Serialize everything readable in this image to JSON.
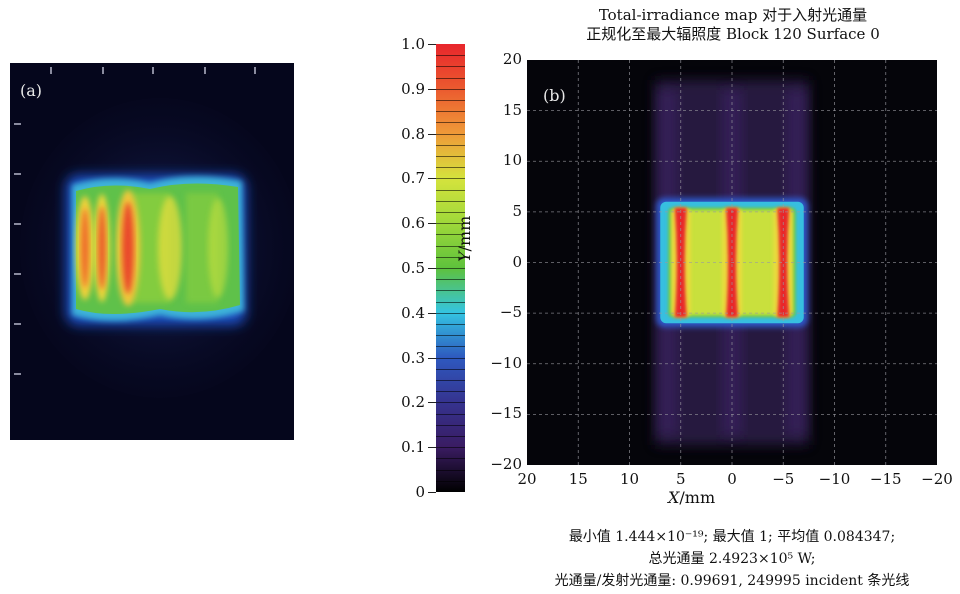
{
  "panel_a": {
    "tag": "(a)"
  },
  "colorbar": {
    "ticks": [
      "0",
      "0.1",
      "0.2",
      "0.3",
      "0.4",
      "0.5",
      "0.6",
      "0.7",
      "0.8",
      "0.9",
      "1.0"
    ],
    "colors": [
      "#000000",
      "#3a1c62",
      "#35338f",
      "#2e59bf",
      "#34c4e2",
      "#5ec23c",
      "#9fd83a",
      "#d5e33d",
      "#ef9a38",
      "#eb5a2f",
      "#e8262c"
    ]
  },
  "panel_b": {
    "tag": "(b)",
    "title_line1": "Total-irradiance map 对于入射光通量",
    "title_line2": "正规化至最大辐照度 Block 120 Surface 0",
    "xlabel_var": "X",
    "xlabel_unit": "/mm",
    "ylabel_var": "Y",
    "ylabel_unit": "/mm",
    "footer_line1": "最小值 1.444×10⁻¹⁹; 最大值 1; 平均值 0.084347;",
    "footer_line2": "总光通量  2.4923×10⁵ W;",
    "footer_line3": "光通量/发射光通量: 0.99691,  249995 incident 条光线"
  },
  "chart_data": [
    {
      "type": "heatmap",
      "title": "Total-irradiance map 对于入射光通量 正规化至最大辐照度 Block 120 Surface 0",
      "xlabel": "X/mm",
      "ylabel": "Y/mm",
      "x_ticks": [
        "20",
        "15",
        "10",
        "5",
        "0",
        "−5",
        "−10",
        "−15",
        "−20"
      ],
      "y_ticks": [
        "20",
        "15",
        "10",
        "5",
        "0",
        "−5",
        "−10",
        "−15",
        "−20"
      ],
      "xlim": [
        20,
        -20
      ],
      "ylim": [
        -20,
        20
      ],
      "grid": true,
      "colorbar_range": [
        0,
        1.0
      ],
      "min_value": 1.444e-19,
      "max_value": 1,
      "mean_value": 0.084347,
      "bright_region": {
        "x": [
          7,
          -7
        ],
        "y": [
          -6,
          6
        ]
      },
      "peak_stripes_x": [
        5,
        0,
        -5
      ],
      "faint_halo_region": {
        "x": [
          7.5,
          -7.5
        ],
        "y": [
          -20,
          20
        ]
      }
    }
  ]
}
